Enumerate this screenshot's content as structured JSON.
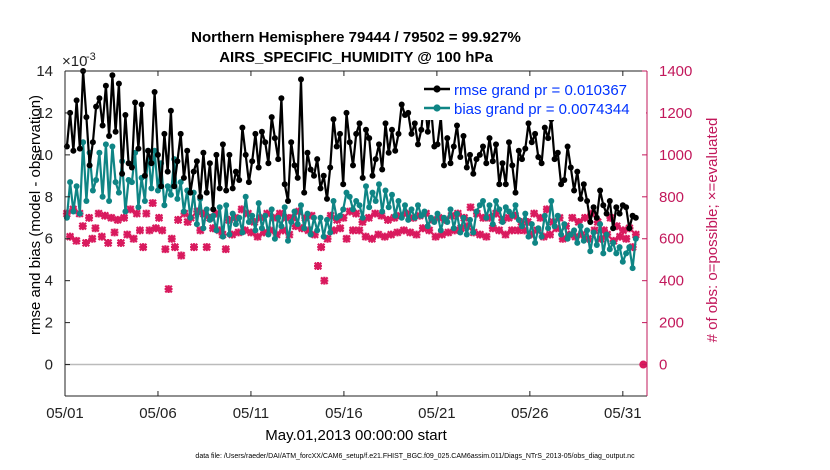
{
  "chart_data": {
    "type": "line",
    "title": [
      "Northern Hemisphere 79444 / 79502 = 99.927%",
      "AIRS_SPECIFIC_HUMIDITY @ 100 hPa"
    ],
    "xlabel": "May.01,2013 00:00:00 start",
    "ylabel_left": "rmse and bias (model - observation)",
    "ylabel_right": "# of obs: o=possible; ×=evaluated",
    "y_exponent": "×10",
    "y_exponent_power": "-3",
    "xlim": [
      0,
      31.3
    ],
    "ylim_left": [
      -1.5,
      14
    ],
    "ylim_right": [
      -150,
      1400
    ],
    "x_ticks": [
      0,
      5,
      10,
      15,
      20,
      25,
      30
    ],
    "x_tick_labels": [
      "05/01",
      "05/06",
      "05/11",
      "05/16",
      "05/21",
      "05/26",
      "05/31"
    ],
    "y_ticks_left": [
      0,
      2,
      4,
      6,
      8,
      10,
      12,
      14
    ],
    "y_ticks_right": [
      0,
      200,
      400,
      600,
      800,
      1000,
      1200,
      1400
    ],
    "footer": "data file: /Users/raeder/DAI/ATM_forcXX/CAM6_setup/f.e21.FHIST_BGC.f09_025.CAM6assim.011/Diags_NTrS_2013-05/obs_diag_output.nc",
    "colors": {
      "rmse": "#000000",
      "bias": "#0f8585",
      "obs": "#d91a5e",
      "left_axis": "#222222",
      "right_axis": "#c2185b",
      "legend_text": "#0033ff"
    },
    "series": [
      {
        "name": "rmse grand pr = 0.010367",
        "values": [
          10.4,
          12.0,
          10.2,
          12.6,
          10.3,
          14.0,
          11.8,
          9.5,
          10.6,
          12.3,
          12.7,
          11.4,
          13.3,
          10.9,
          13.8,
          11.1,
          13.4,
          9.1,
          11.9,
          9.6,
          9.4,
          12.5,
          10.3,
          12.4,
          9.0,
          10.2,
          9.6,
          13.0,
          10.0,
          8.5,
          11.0,
          9.2,
          12.1,
          8.5,
          9.7,
          11.0,
          8.9,
          10.2,
          8.2,
          9.2,
          9.7,
          8.0,
          10.1,
          8.2,
          9.6,
          7.4,
          10.0,
          8.4,
          10.5,
          8.3,
          10.0,
          8.4,
          9.2,
          8.8,
          11.3,
          10.0,
          8.7,
          9.7,
          11.0,
          9.4,
          11.1,
          10.6,
          9.6,
          11.8,
          10.8,
          9.8,
          12.7,
          8.6,
          7.8,
          10.6,
          9.5,
          8.9,
          13.6,
          8.2,
          10.1,
          9.3,
          9.0,
          9.8,
          8.4,
          9.0,
          7.9,
          9.4,
          11.7,
          10.4,
          11.0,
          8.6,
          12.0,
          10.6,
          9.5,
          11.0,
          11.5,
          8.9,
          11.2,
          10.8,
          9.0,
          9.8,
          10.5,
          9.3,
          11.5,
          10.1,
          11.2,
          10.2,
          11.0,
          12.4,
          11.9,
          12.0,
          11.0,
          11.5,
          10.5,
          11.2,
          12.7,
          11.1,
          12.3,
          10.4,
          10.5,
          11.8,
          9.5,
          10.8,
          9.6,
          10.4,
          11.4,
          9.9,
          10.9,
          9.4,
          10.0,
          9.1,
          9.8,
          10.0,
          10.4,
          9.6,
          10.8,
          9.7,
          10.5,
          8.6,
          9.6,
          8.6,
          10.6,
          9.5,
          8.2,
          10.2,
          9.8,
          10.3,
          11.5,
          10.6,
          11.0,
          9.9,
          9.6,
          11.3,
          10.8,
          11.7,
          9.8,
          10.1,
          8.6,
          8.8,
          10.4,
          9.4,
          8.3,
          9.2,
          7.9,
          8.6,
          7.8,
          6.8,
          7.5,
          7.0,
          8.3,
          7.6,
          7.2,
          7.8,
          6.5,
          7.5,
          7.2,
          7.6,
          7.5,
          6.5,
          7.1,
          7.0
        ],
        "legend_label": "rmse grand pr = 0.010367"
      },
      {
        "name": "bias grand pr = 0.0074344",
        "values": [
          7.0,
          8.7,
          7.3,
          8.5,
          7.2,
          10.6,
          7.8,
          10.1,
          8.3,
          8.8,
          10.1,
          8.0,
          10.5,
          7.8,
          10.4,
          8.7,
          8.2,
          9.7,
          7.3,
          8.8,
          8.7,
          10.1,
          7.5,
          8.9,
          7.8,
          10.2,
          8.4,
          10.2,
          8.3,
          9.6,
          7.6,
          8.5,
          8.1,
          9.8,
          7.9,
          8.7,
          7.3,
          8.3,
          7.0,
          8.2,
          6.7,
          7.9,
          6.5,
          7.4,
          6.9,
          7.1,
          6.4,
          7.5,
          6.1,
          7.6,
          6.2,
          7.2,
          6.7,
          7.0,
          6.3,
          8.0,
          6.8,
          7.1,
          6.4,
          7.7,
          6.5,
          7.1,
          6.2,
          7.4,
          6.0,
          7.0,
          6.6,
          7.5,
          5.9,
          6.8,
          7.3,
          6.7,
          7.6,
          6.5,
          7.2,
          6.2,
          7.0,
          6.4,
          7.0,
          6.1,
          6.9,
          6.3,
          7.8,
          7.0,
          7.1,
          7.4,
          8.2,
          8.0,
          7.4,
          7.8,
          7.6,
          7.0,
          8.5,
          7.5,
          8.2,
          7.8,
          8.6,
          7.3,
          8.3,
          7.5,
          8.1,
          7.1,
          7.8,
          7.0,
          7.6,
          6.9,
          7.4,
          7.0,
          7.6,
          7.1,
          7.3,
          6.6,
          7.0,
          6.8,
          7.2,
          6.4,
          7.0,
          6.8,
          7.4,
          6.5,
          7.2,
          6.3,
          7.0,
          6.2,
          6.9,
          6.3,
          7.3,
          7.6,
          7.8,
          7.0,
          7.6,
          6.7,
          7.8,
          7.4,
          6.8,
          7.5,
          7.3,
          7.1,
          7.6,
          6.9,
          6.6,
          7.2,
          6.1,
          6.7,
          5.8,
          6.5,
          6.1,
          7.1,
          6.5,
          7.8,
          6.6,
          7.1,
          6.2,
          6.7,
          6.0,
          6.2,
          6.4,
          5.8,
          6.6,
          5.9,
          6.4,
          5.4,
          6.3,
          5.7,
          6.7,
          5.3,
          6.2,
          5.5,
          5.8,
          5.3,
          5.6,
          4.9,
          5.3,
          5.6,
          4.6,
          6.0
        ],
        "legend_label": "bias grand pr = 0.0074344"
      }
    ],
    "obs_counts": [
      720,
      610,
      740,
      590,
      720,
      660,
      580,
      700,
      600,
      650,
      720,
      610,
      710,
      580,
      700,
      630,
      690,
      580,
      700,
      620,
      740,
      600,
      720,
      640,
      560,
      720,
      640,
      770,
      650,
      700,
      640,
      550,
      360,
      600,
      560,
      690,
      520,
      720,
      680,
      700,
      560,
      730,
      640,
      720,
      560,
      700,
      650,
      720,
      640,
      620,
      550,
      690,
      620,
      700,
      630,
      740,
      640,
      720,
      630,
      680,
      610,
      700,
      630,
      720,
      640,
      700,
      620,
      720,
      640,
      700,
      620,
      700,
      660,
      730,
      650,
      700,
      640,
      710,
      620,
      470,
      560,
      400,
      600,
      710,
      640,
      690,
      650,
      700,
      600,
      730,
      640,
      720,
      640,
      680,
      610,
      700,
      600,
      720,
      620,
      710,
      610,
      690,
      620,
      700,
      630,
      710,
      640,
      720,
      630,
      700,
      620,
      710,
      650,
      720,
      640,
      690,
      610,
      700,
      620,
      690,
      630,
      710,
      640,
      720,
      650,
      700,
      660,
      750,
      630,
      720,
      620,
      700,
      610,
      700,
      650,
      720,
      640,
      690,
      620,
      700,
      640,
      710,
      640,
      680,
      640,
      680,
      620,
      720,
      640,
      700,
      610,
      740,
      620,
      680,
      650,
      700,
      600,
      660,
      620,
      700,
      610,
      680,
      620,
      700,
      600,
      720,
      640,
      680,
      600,
      640,
      620,
      700,
      590,
      660,
      610,
      640,
      600,
      650,
      560,
      620
    ],
    "zero_marker": {
      "x": 31.1,
      "y": 0
    }
  }
}
